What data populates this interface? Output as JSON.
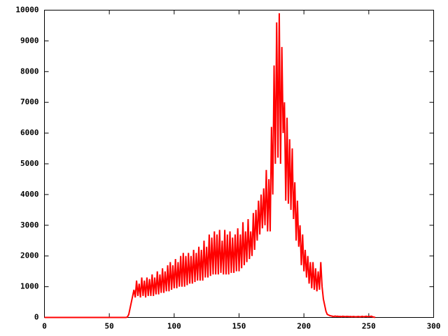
{
  "chart_data": {
    "type": "line",
    "x": [
      0,
      1,
      2,
      3,
      4,
      5,
      6,
      7,
      8,
      9,
      10,
      11,
      12,
      13,
      14,
      15,
      16,
      17,
      18,
      19,
      20,
      21,
      22,
      23,
      24,
      25,
      26,
      27,
      28,
      29,
      30,
      31,
      32,
      33,
      34,
      35,
      36,
      37,
      38,
      39,
      40,
      41,
      42,
      43,
      44,
      45,
      46,
      47,
      48,
      49,
      50,
      51,
      52,
      53,
      54,
      55,
      56,
      57,
      58,
      59,
      60,
      61,
      62,
      63,
      64,
      65,
      66,
      67,
      68,
      69,
      70,
      71,
      72,
      73,
      74,
      75,
      76,
      77,
      78,
      79,
      80,
      81,
      82,
      83,
      84,
      85,
      86,
      87,
      88,
      89,
      90,
      91,
      92,
      93,
      94,
      95,
      96,
      97,
      98,
      99,
      100,
      101,
      102,
      103,
      104,
      105,
      106,
      107,
      108,
      109,
      110,
      111,
      112,
      113,
      114,
      115,
      116,
      117,
      118,
      119,
      120,
      121,
      122,
      123,
      124,
      125,
      126,
      127,
      128,
      129,
      130,
      131,
      132,
      133,
      134,
      135,
      136,
      137,
      138,
      139,
      140,
      141,
      142,
      143,
      144,
      145,
      146,
      147,
      148,
      149,
      150,
      151,
      152,
      153,
      154,
      155,
      156,
      157,
      158,
      159,
      160,
      161,
      162,
      163,
      164,
      165,
      166,
      167,
      168,
      169,
      170,
      171,
      172,
      173,
      174,
      175,
      176,
      177,
      178,
      179,
      180,
      181,
      182,
      183,
      184,
      185,
      186,
      187,
      188,
      189,
      190,
      191,
      192,
      193,
      194,
      195,
      196,
      197,
      198,
      199,
      200,
      201,
      202,
      203,
      204,
      205,
      206,
      207,
      208,
      209,
      210,
      211,
      212,
      213,
      214,
      215,
      216,
      217,
      218,
      219,
      220,
      221,
      222,
      223,
      224,
      225,
      226,
      227,
      228,
      229,
      230,
      231,
      232,
      233,
      234,
      235,
      236,
      237,
      238,
      239,
      240,
      241,
      242,
      243,
      244,
      245,
      246,
      247,
      248,
      249,
      250,
      251,
      252,
      253,
      254,
      255
    ],
    "series": [
      {
        "color": "#ff0000",
        "values": [
          0,
          0,
          0,
          0,
          0,
          0,
          0,
          0,
          0,
          0,
          0,
          0,
          0,
          0,
          0,
          0,
          0,
          0,
          0,
          0,
          0,
          0,
          0,
          0,
          0,
          0,
          0,
          0,
          0,
          0,
          0,
          0,
          0,
          0,
          0,
          0,
          0,
          0,
          0,
          0,
          0,
          0,
          0,
          0,
          0,
          0,
          0,
          0,
          0,
          0,
          0,
          0,
          0,
          0,
          0,
          0,
          0,
          0,
          0,
          0,
          0,
          0,
          0,
          0,
          20,
          100,
          300,
          500,
          700,
          900,
          650,
          1200,
          700,
          1100,
          650,
          1300,
          700,
          1200,
          650,
          1300,
          700,
          1250,
          700,
          1400,
          700,
          1300,
          750,
          1500,
          750,
          1400,
          800,
          1600,
          800,
          1500,
          850,
          1700,
          850,
          1800,
          900,
          1700,
          950,
          1900,
          950,
          1800,
          1000,
          2000,
          1000,
          2100,
          1000,
          2000,
          1050,
          2100,
          1100,
          2000,
          1100,
          2200,
          1150,
          2100,
          1200,
          2300,
          1200,
          2200,
          1200,
          2500,
          1300,
          2300,
          1300,
          2700,
          1350,
          2600,
          1400,
          2800,
          1400,
          2700,
          1400,
          2850,
          1450,
          2500,
          1400,
          2850,
          1400,
          2700,
          1400,
          2800,
          1450,
          2600,
          1450,
          2700,
          1500,
          2900,
          1500,
          2700,
          1600,
          3100,
          1700,
          2800,
          1800,
          3200,
          1900,
          2800,
          2000,
          3400,
          2200,
          3500,
          2500,
          3800,
          2700,
          4000,
          2900,
          4200,
          3000,
          4800,
          2800,
          4500,
          2800,
          6200,
          4000,
          8200,
          5000,
          9600,
          5200,
          9900,
          5000,
          8800,
          6000,
          7000,
          3800,
          6500,
          3700,
          5800,
          3500,
          5500,
          3200,
          4400,
          2500,
          3800,
          2300,
          3000,
          1700,
          2700,
          1500,
          2200,
          1300,
          2000,
          1100,
          1800,
          950,
          1800,
          900,
          1600,
          850,
          1500,
          900,
          1800,
          1000,
          600,
          400,
          200,
          100,
          80,
          60,
          50,
          40,
          30,
          45,
          35,
          40,
          30,
          35,
          25,
          40,
          30,
          25,
          35,
          30,
          25,
          30,
          20,
          30,
          25,
          20,
          25,
          30,
          20,
          25,
          35,
          20,
          30,
          40,
          25,
          30,
          30,
          40,
          20,
          10,
          0
        ]
      }
    ],
    "xlim": [
      0,
      300
    ],
    "xticks": [
      0,
      50,
      100,
      150,
      200,
      250,
      300
    ],
    "ylim": [
      0,
      10000
    ],
    "yticks": [
      0,
      1000,
      2000,
      3000,
      4000,
      5000,
      6000,
      7000,
      8000,
      9000,
      10000
    ]
  }
}
